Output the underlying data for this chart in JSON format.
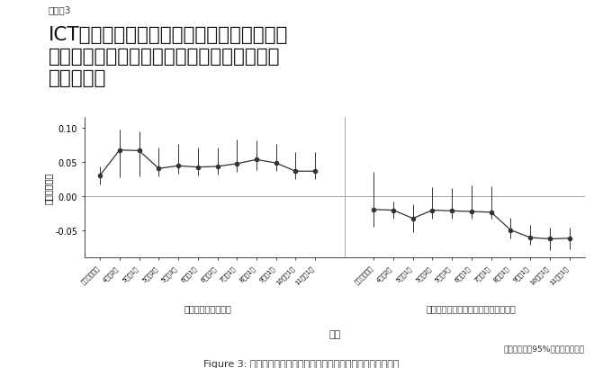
{
  "sheet_label": "シート3",
  "title_line1": "ICT活用機会が多い仕事（会議が多い・デス",
  "title_line2": "クワーク）に就いている人はテレワーク従事",
  "title_line3": "確率が高い",
  "ylabel": "平均限界効果",
  "xlabel": "時期",
  "group1_label": "会議や打合せが多い",
  "group2_label": "デスクワークではなく現場業務が中心",
  "error_note": "エラーバーは95%信頼区間を示す",
  "figure_caption": "Figure 3: 会議が多い仕事・現場業務が中心の仕事の平均限界効果",
  "ylim": [
    -0.09,
    0.115
  ],
  "yticks": [
    -0.05,
    0.0,
    0.05,
    0.1
  ],
  "group1_x_labels": [
    "コロナ流行前",
    "4月第2週",
    "5月第1週",
    "5月第2週",
    "5月第3週",
    "6月第1週",
    "6月第2週",
    "7月第1週",
    "8月第1週",
    "9月第1週",
    "10月第1週",
    "11月第1週"
  ],
  "group1_y": [
    0.03,
    0.067,
    0.066,
    0.04,
    0.044,
    0.042,
    0.043,
    0.047,
    0.053,
    0.048,
    0.036,
    0.036
  ],
  "group1_yerr_lo": [
    0.013,
    0.04,
    0.038,
    0.012,
    0.012,
    0.012,
    0.012,
    0.012,
    0.015,
    0.012,
    0.012,
    0.012
  ],
  "group1_yerr_hi": [
    0.013,
    0.03,
    0.028,
    0.03,
    0.032,
    0.028,
    0.028,
    0.036,
    0.028,
    0.028,
    0.028,
    0.028
  ],
  "group2_x_labels": [
    "コロナ流行前",
    "4月第2週",
    "5月第1週",
    "5月第2週",
    "5月第3週",
    "6月第1週",
    "7月第1週",
    "8月第1週",
    "9月第1週",
    "10月第1週",
    "11月第1週"
  ],
  "group2_y": [
    -0.02,
    -0.021,
    -0.033,
    -0.021,
    -0.022,
    -0.023,
    -0.024,
    -0.05,
    -0.061,
    -0.063,
    -0.062
  ],
  "group2_yerr_lo": [
    0.025,
    0.013,
    0.02,
    0.012,
    0.012,
    0.01,
    0.01,
    0.012,
    0.01,
    0.016,
    0.016
  ],
  "group2_yerr_hi": [
    0.055,
    0.013,
    0.02,
    0.033,
    0.033,
    0.038,
    0.038,
    0.018,
    0.018,
    0.016,
    0.016
  ],
  "line_color": "#333333",
  "background_color": "#ffffff",
  "zero_line_color": "#aaaaaa"
}
